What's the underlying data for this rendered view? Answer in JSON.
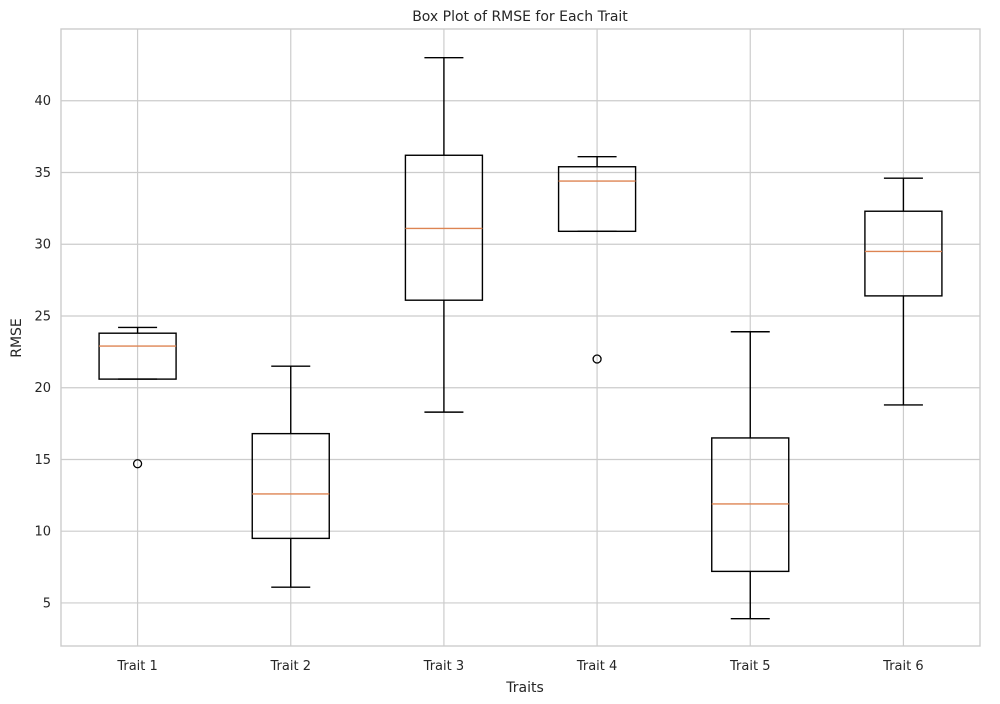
{
  "chart_data": {
    "type": "boxplot",
    "title": "Box Plot of RMSE for Each Trait",
    "xlabel": "Traits",
    "ylabel": "RMSE",
    "ylim": [
      2,
      45
    ],
    "yticks": [
      5,
      10,
      15,
      20,
      25,
      30,
      35,
      40
    ],
    "grid": true,
    "categories": [
      "Trait 1",
      "Trait 2",
      "Trait 3",
      "Trait 4",
      "Trait 5",
      "Trait 6"
    ],
    "boxes": [
      {
        "name": "Trait 1",
        "whisker_low": 20.6,
        "q1": 20.6,
        "median": 22.9,
        "q3": 23.8,
        "whisker_high": 24.2,
        "outliers": [
          14.7
        ]
      },
      {
        "name": "Trait 2",
        "whisker_low": 6.1,
        "q1": 9.5,
        "median": 12.6,
        "q3": 16.8,
        "whisker_high": 21.5,
        "outliers": []
      },
      {
        "name": "Trait 3",
        "whisker_low": 18.3,
        "q1": 26.1,
        "median": 31.1,
        "q3": 36.2,
        "whisker_high": 43.0,
        "outliers": []
      },
      {
        "name": "Trait 4",
        "whisker_low": 30.9,
        "q1": 30.9,
        "median": 34.4,
        "q3": 35.4,
        "whisker_high": 36.1,
        "outliers": [
          22.0
        ]
      },
      {
        "name": "Trait 5",
        "whisker_low": 3.9,
        "q1": 7.2,
        "median": 11.9,
        "q3": 16.5,
        "whisker_high": 23.9,
        "outliers": []
      },
      {
        "name": "Trait 6",
        "whisker_low": 18.8,
        "q1": 26.4,
        "median": 29.5,
        "q3": 32.3,
        "whisker_high": 34.6,
        "outliers": []
      }
    ],
    "colors": {
      "box": "#000000",
      "median": "#dd8452",
      "grid": "#cccccc",
      "text": "#262626"
    }
  }
}
